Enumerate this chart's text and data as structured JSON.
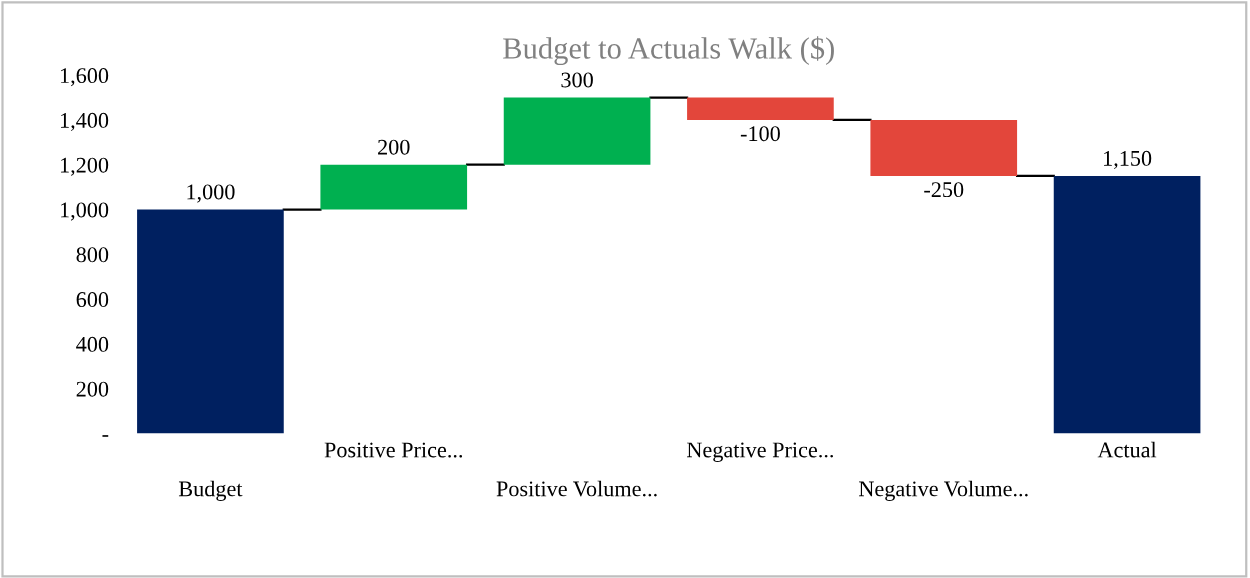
{
  "chart_data": {
    "type": "bar",
    "title": "Budget to Actuals Walk ($)",
    "categories": [
      "Budget",
      "Positive Price...",
      "Positive Volume...",
      "Negative Price...",
      "Negative Volume...",
      "Actual"
    ],
    "values": [
      1000,
      200,
      300,
      -100,
      -250,
      1150
    ],
    "base": [
      0,
      1000,
      1200,
      1500,
      1400,
      0
    ],
    "colors": [
      "#002060",
      "#00b050",
      "#00b050",
      "#e3463b",
      "#e3463b",
      "#002060"
    ],
    "value_labels": [
      "1,000",
      "200",
      "300",
      "-100",
      "-250",
      "1,150"
    ],
    "ylim": [
      0,
      1600
    ],
    "yticks": [
      {
        "value": 0,
        "label": "-"
      },
      {
        "value": 200,
        "label": "200"
      },
      {
        "value": 400,
        "label": "400"
      },
      {
        "value": 600,
        "label": "600"
      },
      {
        "value": 800,
        "label": "800"
      },
      {
        "value": 1000,
        "label": "1,000"
      },
      {
        "value": 1200,
        "label": "1,200"
      },
      {
        "value": 1400,
        "label": "1,400"
      },
      {
        "value": 1600,
        "label": "1,600"
      }
    ],
    "grid": false,
    "legend": false
  }
}
